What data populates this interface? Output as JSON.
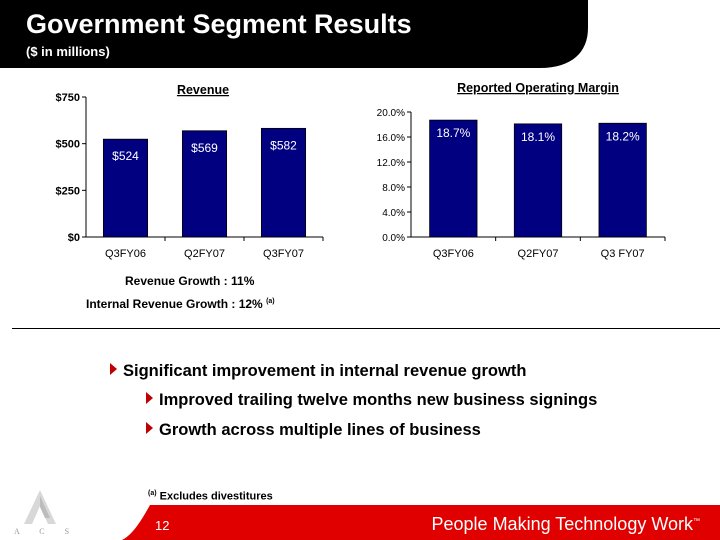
{
  "header": {
    "title": "Government Segment Results",
    "subtitle": "($ in millions)"
  },
  "chart_data": [
    {
      "type": "bar",
      "title": "Revenue",
      "categories": [
        "Q3FY06",
        "Q2FY07",
        "Q3FY07"
      ],
      "values": [
        524,
        569,
        582
      ],
      "value_labels": [
        "$524",
        "$569",
        "$582"
      ],
      "y_ticks": [
        "$0",
        "$250",
        "$500",
        "$750"
      ],
      "ylim": [
        0,
        750
      ],
      "bar_color": "#000080",
      "grid": false,
      "legend": "none"
    },
    {
      "type": "bar",
      "title": "Reported Operating Margin",
      "categories": [
        "Q3FY06",
        "Q2FY07",
        "Q3 FY07"
      ],
      "values": [
        18.7,
        18.1,
        18.2
      ],
      "value_labels": [
        "18.7%",
        "18.1%",
        "18.2%"
      ],
      "y_ticks": [
        "0.0%",
        "4.0%",
        "8.0%",
        "12.0%",
        "16.0%",
        "20.0%"
      ],
      "ylim": [
        0,
        20
      ],
      "bar_color": "#000080",
      "grid": false,
      "legend": "none"
    }
  ],
  "growth": {
    "revenue_growth": "Revenue Growth : 11%",
    "internal_growth": "Internal Revenue Growth : 12%",
    "internal_note": "(a)"
  },
  "bullets": {
    "main": "Significant  improvement in internal revenue growth",
    "sub1": "Improved trailing twelve months new business signings",
    "sub2": "Growth across multiple lines of business"
  },
  "footnote": {
    "marker": "(a)",
    "text": "Excludes divestitures"
  },
  "footer": {
    "page_number": "12",
    "tagline": "People Making Technology Work",
    "tm": "™"
  },
  "logo": {
    "letters": "A C S"
  },
  "colors": {
    "header_black": "#000000",
    "footer_red": "#e00000",
    "bar_navy": "#000080",
    "arrow_red": "#c00000"
  }
}
